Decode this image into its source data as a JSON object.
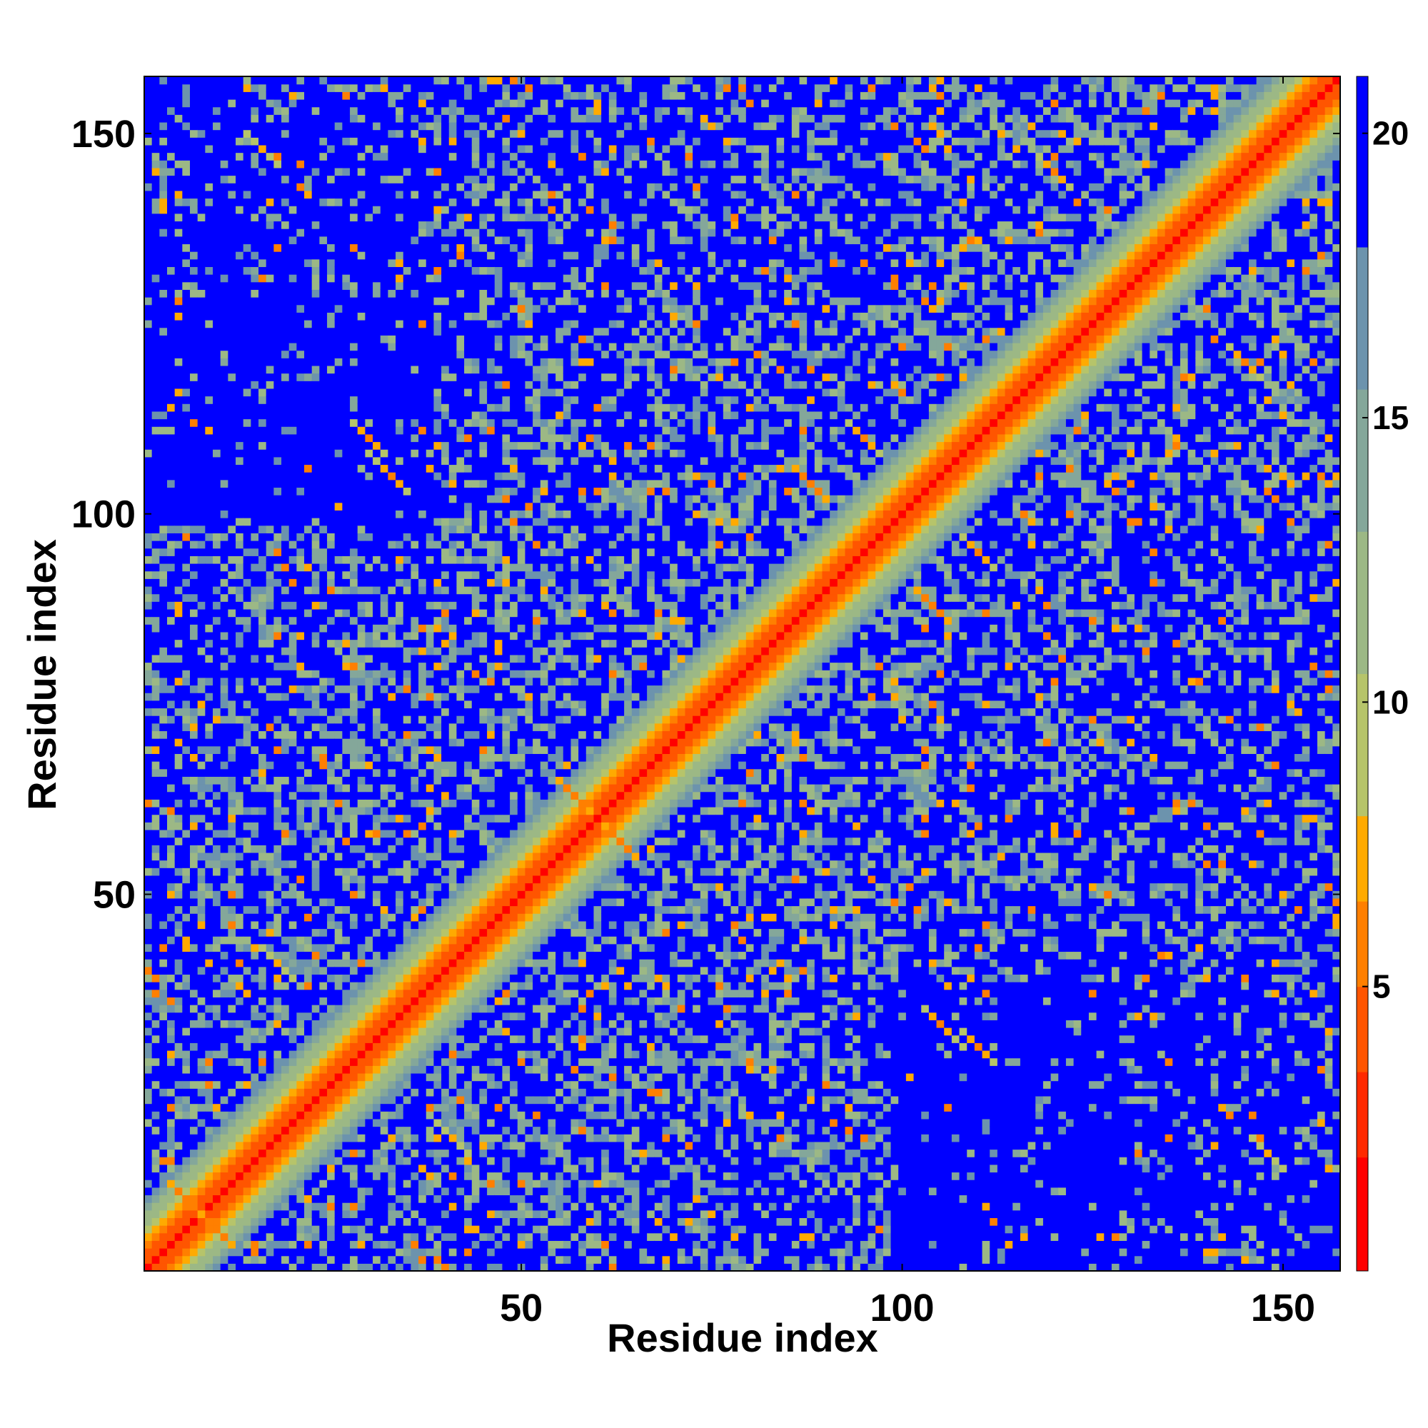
{
  "chart_data": {
    "type": "heatmap",
    "xlabel": "Residue index",
    "ylabel": "Residue index",
    "n_residues": 157,
    "xlim": [
      1,
      157
    ],
    "ylim": [
      1,
      157
    ],
    "x_ticks": [
      50,
      100,
      150
    ],
    "y_ticks": [
      50,
      100,
      150
    ],
    "colorbar": {
      "range": [
        0,
        21
      ],
      "ticks": [
        5,
        10,
        15,
        20
      ],
      "levels": [
        "#ff0000",
        "#ff2a00",
        "#ff5500",
        "#ff7f00",
        "#ffaa00",
        "#b6c46a",
        "#9cb885",
        "#84a79a",
        "#6c93ad",
        "#0000ff"
      ],
      "bounds": [
        0,
        2,
        3.5,
        5,
        6.5,
        8,
        10.5,
        13,
        15.5,
        18,
        21
      ]
    },
    "description_values": {
      "diagonal_distance": 0,
      "background_distance": 21
    },
    "structural_contacts": [
      {
        "i": 6,
        "j": 10,
        "d": 5
      },
      {
        "i": 18,
        "j": 41,
        "d": 7
      },
      {
        "i": 30,
        "j": 110,
        "d": 6
      },
      {
        "i": 32,
        "j": 106,
        "d": 6
      },
      {
        "i": 57,
        "j": 63,
        "d": 5
      },
      {
        "i": 88,
        "j": 104,
        "d": 5
      },
      {
        "i": 95,
        "j": 110,
        "d": 6
      },
      {
        "i": 105,
        "j": 33,
        "d": 6
      },
      {
        "i": 120,
        "j": 145,
        "d": 6
      },
      {
        "i": 148,
        "j": 16,
        "d": 7
      }
    ]
  },
  "colors": {
    "background_far": "#0000ff",
    "diagonal": "#ff0000"
  }
}
